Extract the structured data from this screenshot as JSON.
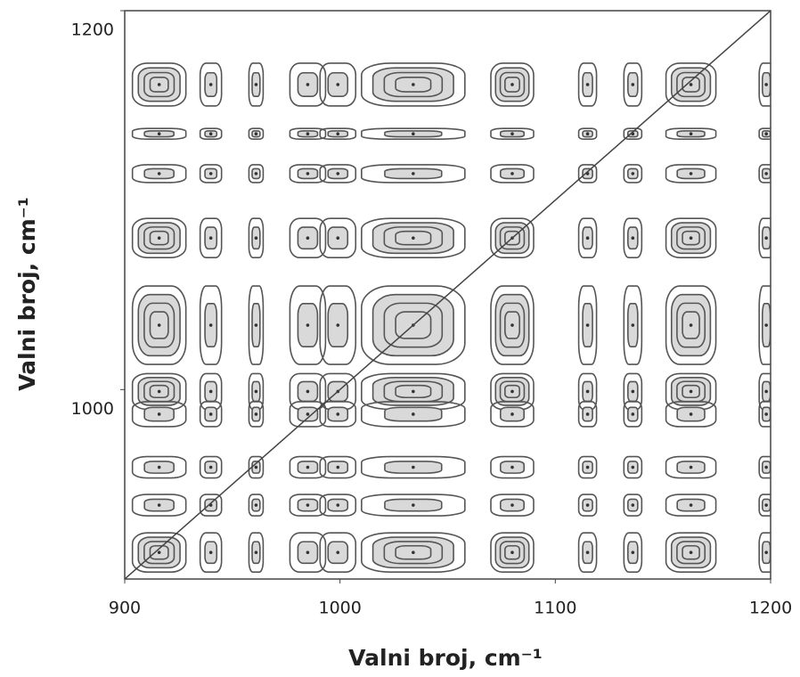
{
  "chart_data": {
    "type": "contour",
    "xlabel": "Valni broj, cm⁻¹",
    "ylabel": "Valni broj, cm⁻¹",
    "xlim": [
      900,
      1200
    ],
    "ylim": [
      900,
      1200
    ],
    "xticks": [
      900,
      1000,
      1100,
      1200
    ],
    "yticks": [
      1000,
      1200
    ],
    "x_peaks": [
      916,
      940,
      961,
      985,
      999,
      1034,
      1080,
      1115,
      1136,
      1163,
      1198
    ],
    "y_peaks": [
      1161,
      1135,
      1114,
      1080,
      1034,
      999,
      987,
      959,
      939,
      914
    ],
    "diagonal": true,
    "color": "#555555",
    "fill": "#d9d9d9"
  }
}
